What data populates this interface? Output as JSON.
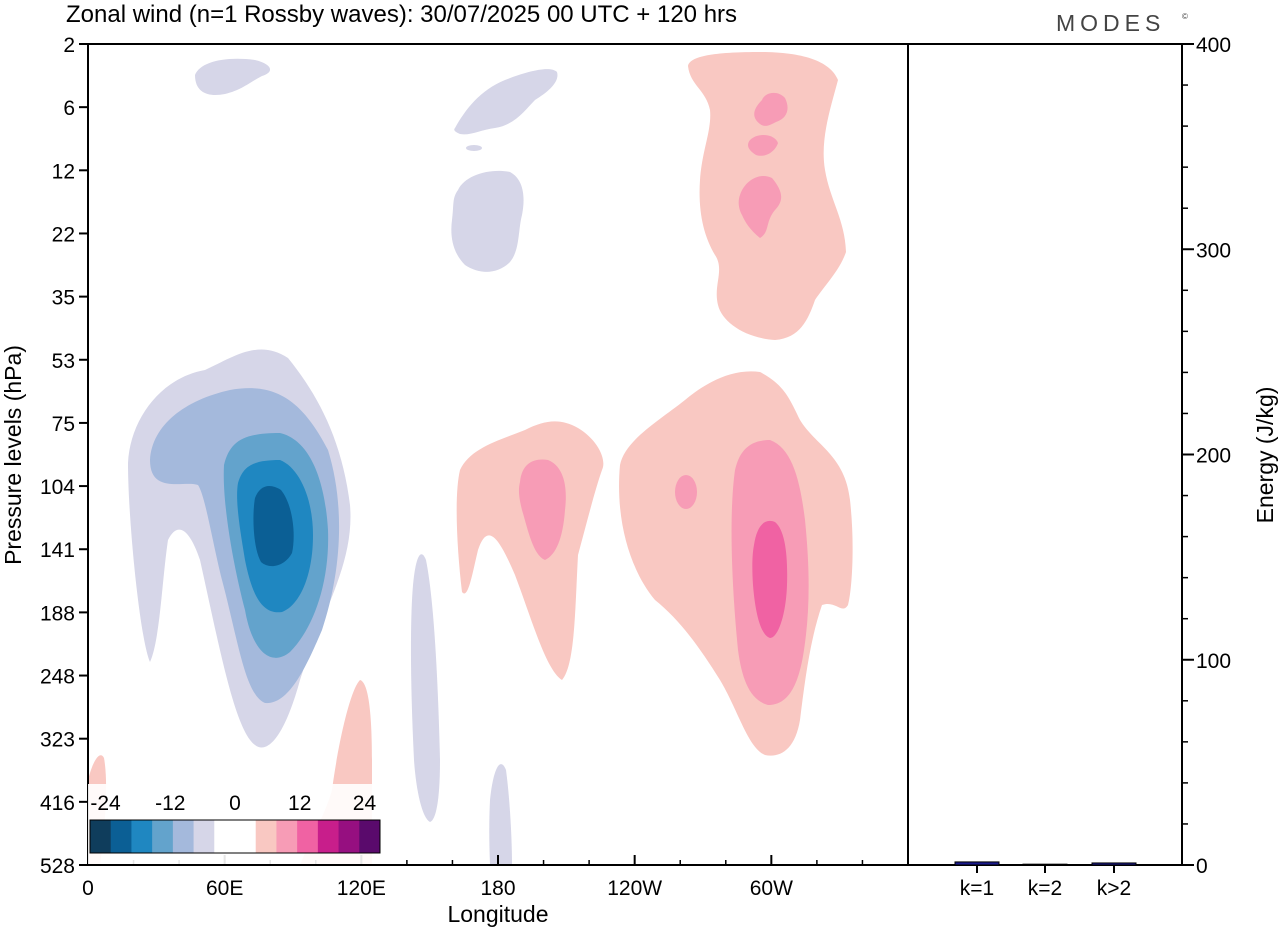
{
  "title": "Zonal wind (n=1 Rossby waves):  30/07/2025  00 UTC  + 120 hrs",
  "brand": "MODES",
  "brand_mark": "©",
  "chart_data": [
    {
      "type": "heatmap",
      "title": "Zonal wind (n=1 Rossby waves):  30/07/2025  00 UTC  + 120 hrs",
      "xlabel": "Longitude",
      "ylabel": "Pressure levels (hPa)",
      "x_ticks": [
        "0",
        "60E",
        "120E",
        "180",
        "120W",
        "60W"
      ],
      "x_tick_degrees": [
        0,
        60,
        120,
        180,
        240,
        300
      ],
      "xlim": [
        0,
        360
      ],
      "y_ticks": [
        "2",
        "6",
        "12",
        "22",
        "35",
        "53",
        "75",
        "104",
        "141",
        "188",
        "248",
        "323",
        "416",
        "528"
      ],
      "colorbar": {
        "tick_labels": [
          "-24",
          "-12",
          "0",
          "12",
          "24"
        ],
        "colors": [
          "#0f3d5c",
          "#0b5f95",
          "#1f87c1",
          "#63a3cc",
          "#a4b9dc",
          "#d6d6e8",
          "#ffffff",
          "#ffffff",
          "#f9c8c2",
          "#f79cb6",
          "#f062a3",
          "#c81e8b",
          "#960f80",
          "#5a0a6c"
        ]
      },
      "features": [
        {
          "lon": 80,
          "level": "104-188",
          "value": -18,
          "sign": "easterly"
        },
        {
          "lon": 193,
          "level": "104-141",
          "value": 8,
          "sign": "westerly"
        },
        {
          "lon": 300,
          "level": "141-188",
          "value": 14,
          "sign": "westerly"
        },
        {
          "lon": 305,
          "level": "6-22",
          "value": 8,
          "sign": "westerly"
        },
        {
          "lon": 180,
          "level": "6-22",
          "value": -4,
          "sign": "easterly"
        }
      ]
    },
    {
      "type": "bar",
      "ylabel": "Energy (J/kg)",
      "ylim": [
        0,
        400
      ],
      "y_ticks": [
        "0",
        "100",
        "200",
        "300",
        "400"
      ],
      "categories": [
        "k=1",
        "k=2",
        "k>2"
      ],
      "values": [
        1.5,
        0.4,
        1.0
      ]
    }
  ]
}
